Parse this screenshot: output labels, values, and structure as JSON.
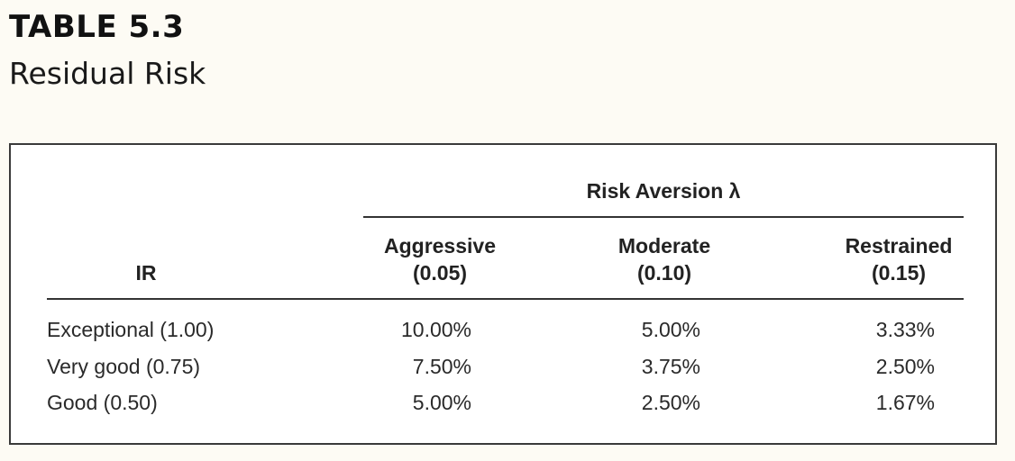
{
  "document": {
    "table_number": "TABLE 5.3",
    "caption": "Residual Risk"
  },
  "table": {
    "group_header": "Risk Aversion λ",
    "row_header": "IR",
    "columns": [
      {
        "name": "Aggressive",
        "value": "(0.05)"
      },
      {
        "name": "Moderate",
        "value": "(0.10)"
      },
      {
        "name": "Restrained",
        "value": "(0.15)"
      }
    ],
    "rows": [
      {
        "label": "Exceptional (1.00)",
        "cells": [
          "10.00%",
          "5.00%",
          "3.33%"
        ]
      },
      {
        "label": "Very good (0.75)",
        "cells": [
          "7.50%",
          "3.75%",
          "2.50%"
        ]
      },
      {
        "label": "Good (0.50)",
        "cells": [
          "5.00%",
          "2.50%",
          "1.67%"
        ]
      }
    ]
  }
}
